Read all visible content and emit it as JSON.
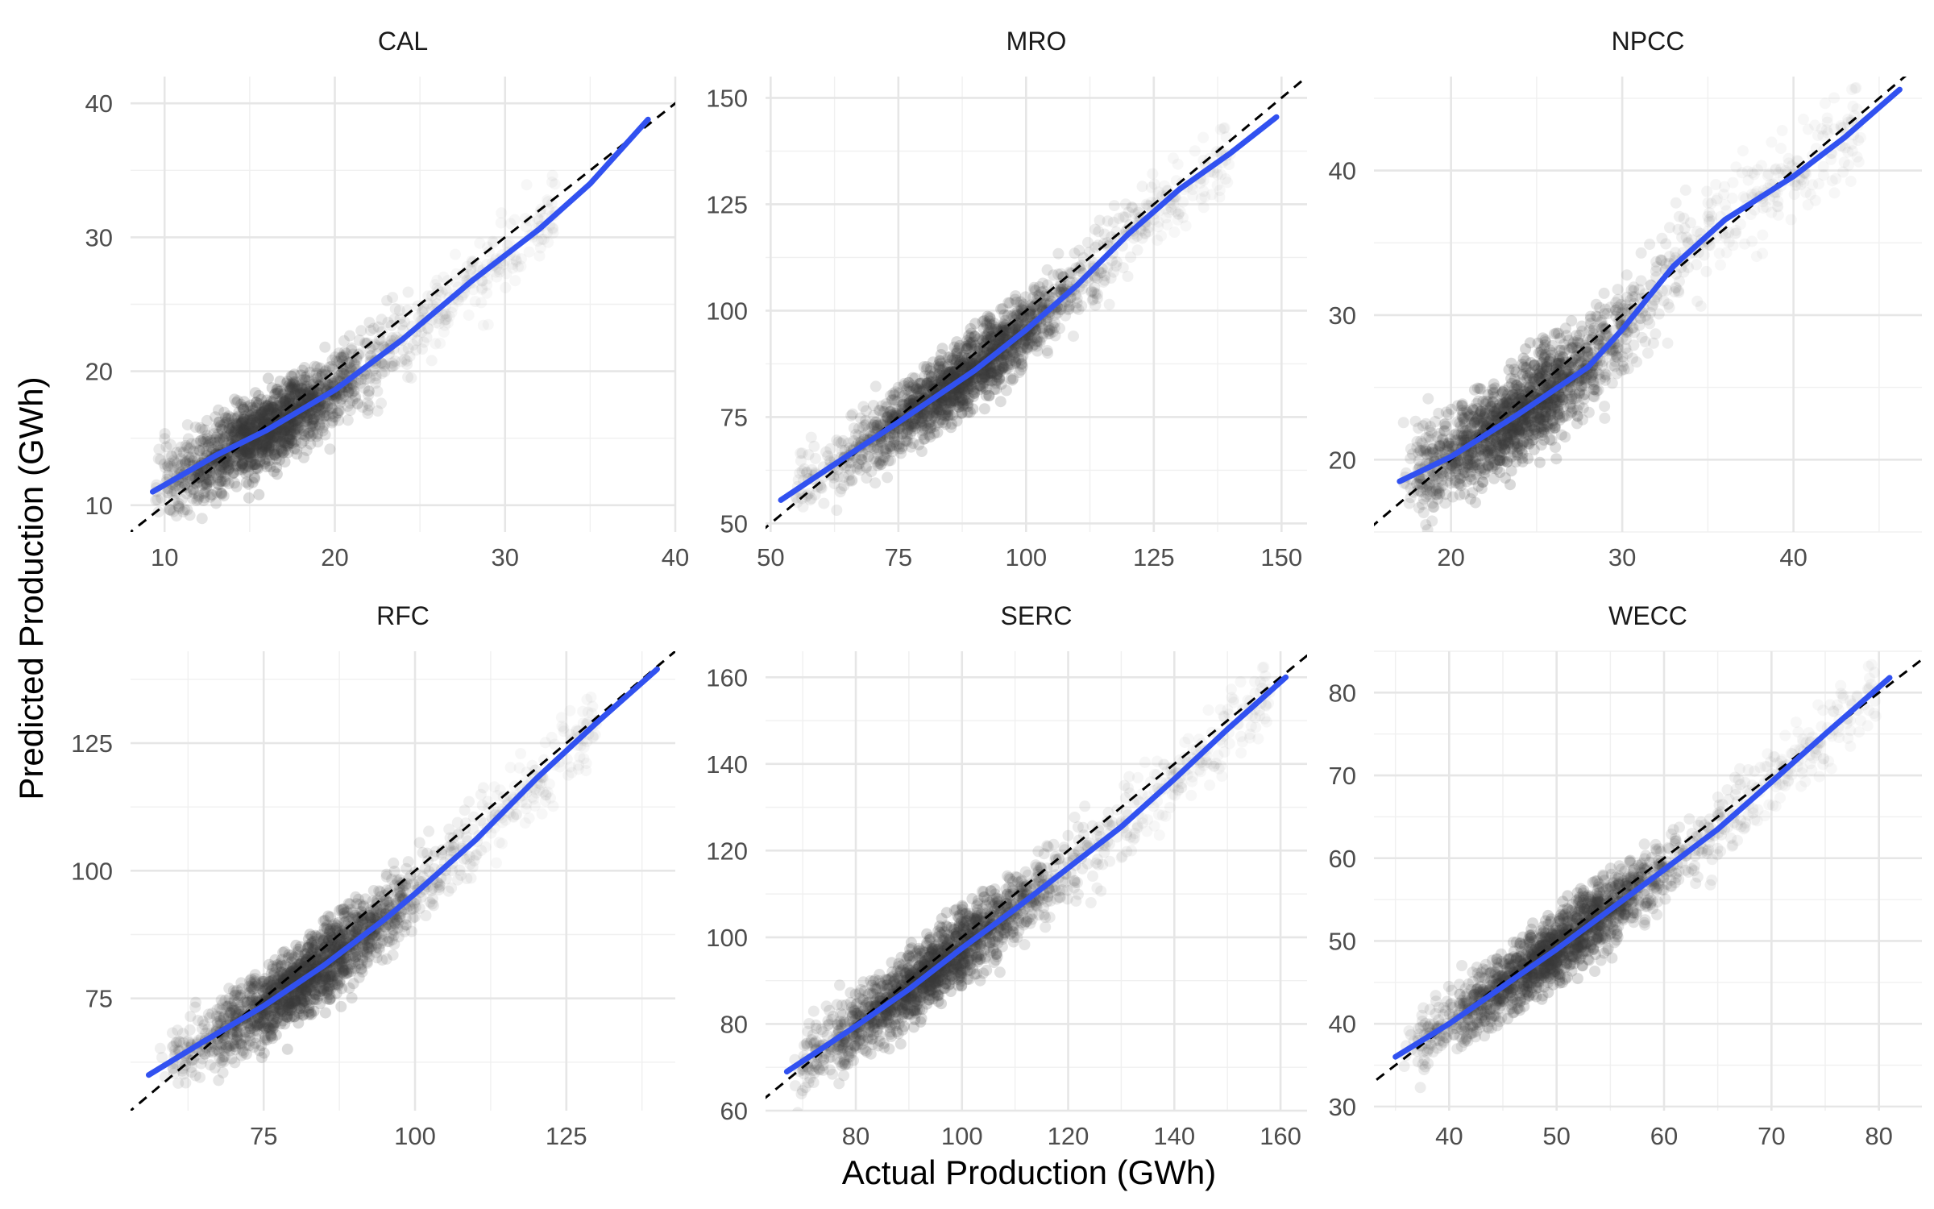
{
  "colors": {
    "fit_line": "#3151f0",
    "identity_line": "#000000",
    "points": "#3a3a3a",
    "grid": "#e6e6e6",
    "background": "#ffffff"
  },
  "chart_data": {
    "type": "scatter",
    "layout": "facet-grid-2x3",
    "xlabel": "Actual Production (GWh)",
    "ylabel": "Predicted Production (GWh)",
    "grid": true,
    "legend": "none",
    "reference_line": "y = x (dashed)",
    "fit_line": "smoothed trend (blue)",
    "panels": [
      {
        "title": "CAL",
        "xlim": [
          8,
          40
        ],
        "ylim": [
          8,
          42
        ],
        "xticks": [
          10,
          20,
          30,
          40
        ],
        "yticks": [
          10,
          20,
          30,
          40
        ],
        "xtick_labels": [
          "10",
          "20",
          "30",
          "40"
        ],
        "ytick_labels": [
          "10",
          "20",
          "30",
          "40"
        ],
        "fit": [
          [
            9.3,
            11
          ],
          [
            13,
            13.7
          ],
          [
            16,
            15.6
          ],
          [
            20,
            18.6
          ],
          [
            24,
            22.4
          ],
          [
            28,
            26.7
          ],
          [
            32,
            30.6
          ],
          [
            35,
            34
          ],
          [
            38.4,
            38.8
          ]
        ],
        "point_cloud": {
          "x_range": [
            10,
            33
          ],
          "density_center": [
            16,
            16.8
          ],
          "spread": 1.4
        }
      },
      {
        "title": "MRO",
        "xlim": [
          49,
          155
        ],
        "ylim": [
          48,
          155
        ],
        "xticks": [
          50,
          75,
          100,
          125,
          150
        ],
        "yticks": [
          50,
          75,
          100,
          125,
          150
        ],
        "xtick_labels": [
          "50",
          "75",
          "100",
          "125",
          "150"
        ],
        "ytick_labels": [
          "50",
          "75",
          "100",
          "125",
          "150"
        ],
        "fit": [
          [
            52,
            55.5
          ],
          [
            62,
            63.5
          ],
          [
            75,
            73.8
          ],
          [
            90,
            86
          ],
          [
            100,
            95.5
          ],
          [
            110,
            106
          ],
          [
            120,
            118
          ],
          [
            130,
            128.5
          ],
          [
            140,
            137
          ],
          [
            149,
            145.5
          ]
        ],
        "point_cloud": {
          "x_range": [
            55,
            140
          ],
          "density_center": [
            88,
            85
          ],
          "spread": 4
        }
      },
      {
        "title": "NPCC",
        "xlim": [
          15.5,
          47.5
        ],
        "ylim": [
          15,
          46.5
        ],
        "xticks": [
          20,
          30,
          40
        ],
        "yticks": [
          20,
          30,
          40
        ],
        "xtick_labels": [
          "20",
          "30",
          "40"
        ],
        "ytick_labels": [
          "20",
          "30",
          "40"
        ],
        "fit": [
          [
            17,
            18.5
          ],
          [
            20,
            20.2
          ],
          [
            24,
            23.2
          ],
          [
            28,
            26.4
          ],
          [
            30,
            29
          ],
          [
            33,
            33.4
          ],
          [
            36,
            36.6
          ],
          [
            40,
            39.6
          ],
          [
            43,
            42.3
          ],
          [
            46.2,
            45.6
          ]
        ],
        "point_cloud": {
          "x_range": [
            18,
            44
          ],
          "density_center": [
            24,
            23.5
          ],
          "spread": 1.6
        }
      },
      {
        "title": "RFC",
        "xlim": [
          53,
          143
        ],
        "ylim": [
          53,
          143
        ],
        "xticks": [
          75,
          100,
          125
        ],
        "yticks": [
          75,
          100,
          125
        ],
        "xtick_labels": [
          "75",
          "100",
          "125"
        ],
        "ytick_labels": [
          "75",
          "100",
          "125"
        ],
        "fit": [
          [
            56,
            60
          ],
          [
            65,
            66.5
          ],
          [
            75,
            73.5
          ],
          [
            85,
            81.5
          ],
          [
            95,
            90.5
          ],
          [
            100,
            95.5
          ],
          [
            110,
            106
          ],
          [
            120,
            118
          ],
          [
            130,
            129
          ],
          [
            140,
            139.5
          ]
        ],
        "point_cloud": {
          "x_range": [
            60,
            130
          ],
          "density_center": [
            82,
            80
          ],
          "spread": 3.5
        }
      },
      {
        "title": "SERC",
        "xlim": [
          63,
          165
        ],
        "ylim": [
          60,
          166
        ],
        "xticks": [
          80,
          100,
          120,
          140,
          160
        ],
        "yticks": [
          60,
          80,
          100,
          120,
          140,
          160
        ],
        "xtick_labels": [
          "80",
          "100",
          "120",
          "140",
          "160"
        ],
        "ytick_labels": [
          "60",
          "80",
          "100",
          "120",
          "140",
          "160"
        ],
        "fit": [
          [
            67,
            69
          ],
          [
            80,
            79.5
          ],
          [
            90,
            88
          ],
          [
            100,
            97.5
          ],
          [
            110,
            106.5
          ],
          [
            120,
            116
          ],
          [
            130,
            125.5
          ],
          [
            140,
            136.5
          ],
          [
            150,
            148
          ],
          [
            161,
            160
          ]
        ],
        "point_cloud": {
          "x_range": [
            70,
            158
          ],
          "density_center": [
            95,
            94
          ],
          "spread": 4
        }
      },
      {
        "title": "WECC",
        "xlim": [
          33,
          84
        ],
        "ylim": [
          29.5,
          85
        ],
        "xticks": [
          40,
          50,
          60,
          70,
          80
        ],
        "yticks": [
          30,
          40,
          50,
          60,
          70,
          80
        ],
        "xtick_labels": [
          "40",
          "50",
          "60",
          "70",
          "80"
        ],
        "ytick_labels": [
          "30",
          "40",
          "50",
          "60",
          "70",
          "80"
        ],
        "fit": [
          [
            35,
            36
          ],
          [
            40,
            40
          ],
          [
            45,
            44.5
          ],
          [
            50,
            49
          ],
          [
            55,
            53.8
          ],
          [
            60,
            58.6
          ],
          [
            65,
            63.5
          ],
          [
            70,
            69.2
          ],
          [
            75,
            75
          ],
          [
            81,
            81.8
          ]
        ],
        "point_cloud": {
          "x_range": [
            37,
            80
          ],
          "density_center": [
            50,
            48.5
          ],
          "spread": 2
        }
      }
    ]
  }
}
